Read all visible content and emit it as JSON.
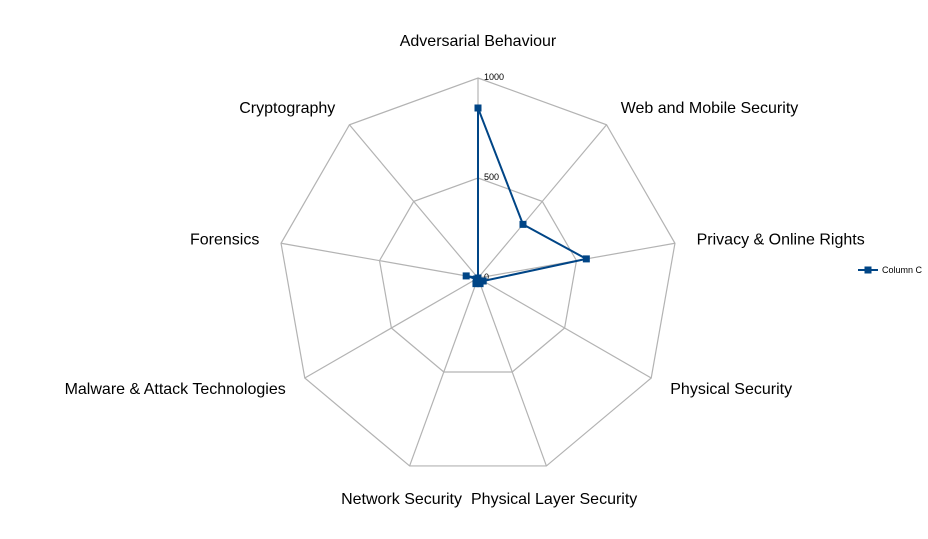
{
  "chart_data": {
    "type": "radar",
    "title": "",
    "categories": [
      "Adversarial Behaviour",
      "Web and Mobile Security",
      "Privacy & Online Rights",
      "Physical Security",
      "Physical Layer Security",
      "Network Security",
      "Malware & Attack Technologies",
      "Forensics",
      "Cryptography"
    ],
    "series": [
      {
        "name": "Column C",
        "color": "#004586",
        "values": [
          850,
          350,
          550,
          30,
          30,
          30,
          10,
          60,
          0
        ]
      }
    ],
    "ylim": [
      0,
      1000
    ],
    "tick_values": [
      0,
      500,
      1000
    ],
    "tick_labels": [
      "0",
      "500",
      "1000"
    ],
    "grid": true,
    "legend_position": "right"
  }
}
